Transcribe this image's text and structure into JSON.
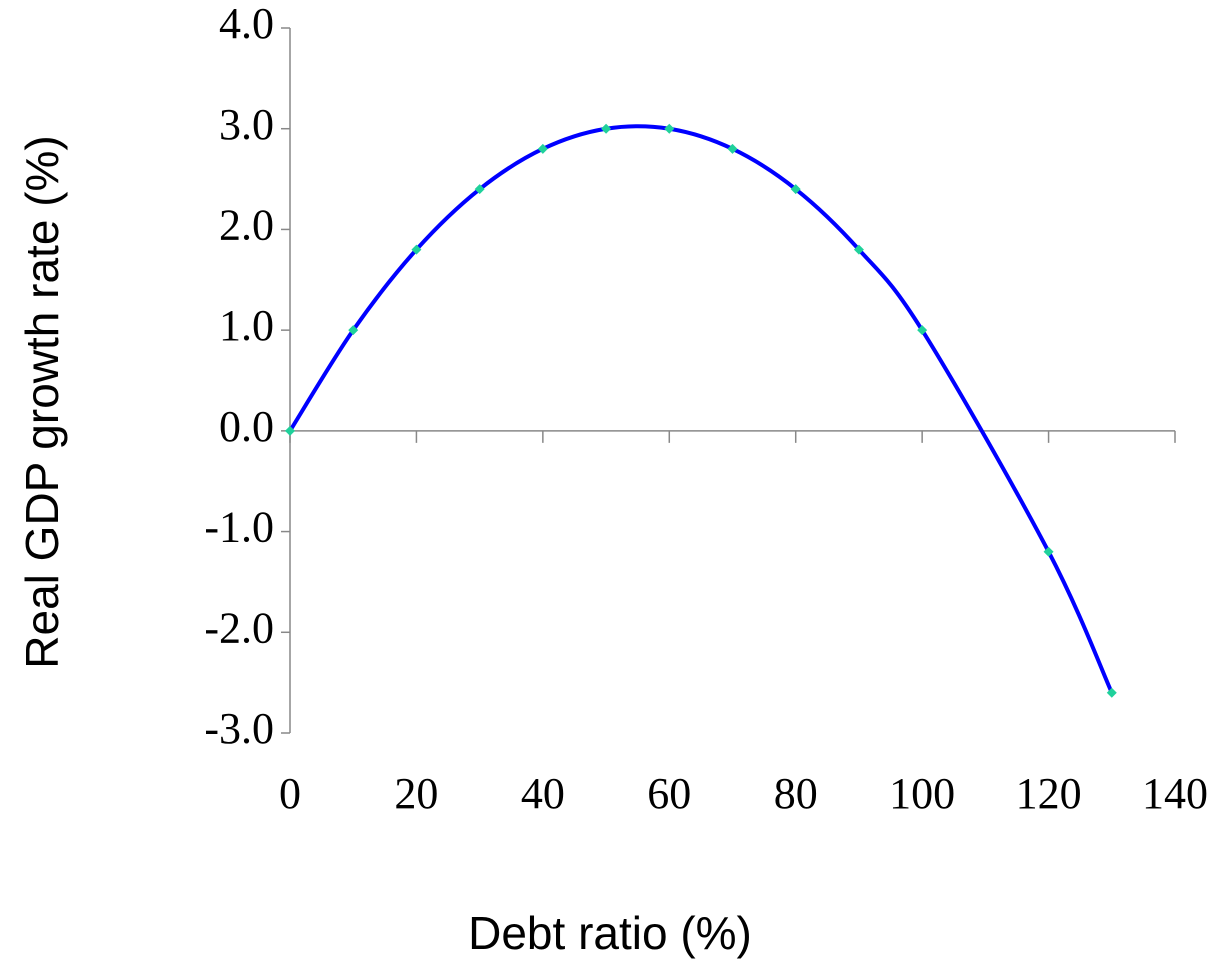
{
  "chart_data": {
    "type": "line",
    "x": [
      0,
      10,
      20,
      30,
      40,
      50,
      60,
      70,
      80,
      90,
      100,
      120,
      130
    ],
    "values": [
      0,
      1.0,
      1.8,
      2.4,
      2.8,
      3.0,
      3.0,
      2.8,
      2.4,
      1.8,
      1.0,
      -1.2,
      -2.6
    ],
    "color": "#0000ff",
    "marker_color": "#1fd19b",
    "xlabel": "Debt ratio (%)",
    "ylabel": "Real GDP growth rate (%)",
    "xlim": [
      0,
      140
    ],
    "ylim": [
      -3,
      4
    ],
    "xticks": [
      0,
      20,
      40,
      60,
      80,
      100,
      120,
      140
    ],
    "yticks": [
      {
        "value": -3,
        "label": "-3.0"
      },
      {
        "value": -2,
        "label": "-2.0"
      },
      {
        "value": -1,
        "label": "-1.0"
      },
      {
        "value": 0,
        "label": "0.0"
      },
      {
        "value": 1,
        "label": "1.0"
      },
      {
        "value": 2,
        "label": "2.0"
      },
      {
        "value": 3,
        "label": "3.0"
      },
      {
        "value": 4,
        "label": "4.0"
      }
    ]
  }
}
